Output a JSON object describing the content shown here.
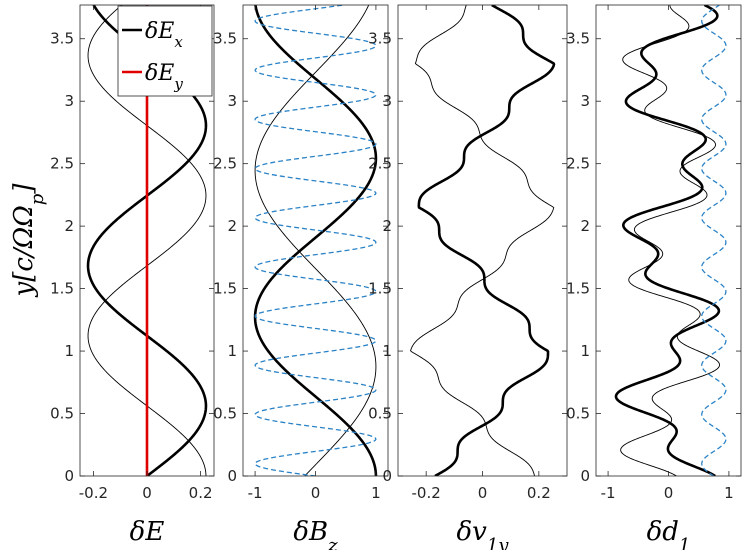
{
  "figure": {
    "ylabel": "y[c/Ωp]"
  },
  "chart_data": [
    {
      "type": "line",
      "panel": "δE",
      "xlabel": "δE",
      "xlim": [
        -0.25,
        0.25
      ],
      "ylim": [
        0,
        3.77
      ],
      "xticks": [
        "-0.2",
        "0",
        "0.2"
      ],
      "xtick_values": [
        -0.2,
        0,
        0.2
      ],
      "yticks": [
        "0",
        "0.5",
        "1",
        "1.5",
        "2",
        "2.5",
        "3",
        "3.5"
      ],
      "ytick_values": [
        0,
        0.5,
        1,
        1.5,
        2,
        2.5,
        3,
        3.5
      ],
      "legend": {
        "placement": "top",
        "entries": [
          {
            "label": "δEx",
            "color": "#000000"
          },
          {
            "label": "δEy",
            "color": "#e00000"
          }
        ]
      },
      "series": [
        {
          "name": "δEx",
          "color": "#000000",
          "style": "thick",
          "model": {
            "kind": "sin",
            "amp": 0.22,
            "k": 2.8,
            "phase": 0.0
          }
        },
        {
          "name": "",
          "color": "#000000",
          "style": "thin",
          "model": {
            "kind": "sin",
            "amp": 0.22,
            "k": 2.8,
            "phase": 1.5708
          }
        },
        {
          "name": "δEy",
          "color": "#e00000",
          "style": "thick",
          "model": {
            "kind": "const",
            "value": 0
          }
        }
      ]
    },
    {
      "type": "line",
      "panel": "δBz",
      "xlabel": "δBz",
      "xlim": [
        -1.2,
        1.2
      ],
      "ylim": [
        0,
        3.77
      ],
      "xticks": [
        "-1",
        "0",
        "1"
      ],
      "xtick_values": [
        -1,
        0,
        1
      ],
      "yticks": [
        "0",
        "0.5",
        "1",
        "1.5",
        "2",
        "2.5",
        "3",
        "3.5"
      ],
      "ytick_values": [
        0,
        0.5,
        1,
        1.5,
        2,
        2.5,
        3,
        3.5
      ],
      "series": [
        {
          "name": "",
          "color": "#000000",
          "style": "thick",
          "model": {
            "kind": "cos",
            "amp": 1.0,
            "k": 2.47,
            "phase": 0.0
          }
        },
        {
          "name": "",
          "color": "#000000",
          "style": "thin",
          "model": {
            "kind": "cos",
            "amp": 1.0,
            "k": 2.0,
            "phase": -1.75
          }
        },
        {
          "name": "",
          "color": "#2b83c7",
          "style": "dashed",
          "model": {
            "kind": "cos",
            "amp": 1.0,
            "k": 15.96,
            "phase": 1.57
          }
        }
      ]
    },
    {
      "type": "line",
      "panel": "δv1y",
      "xlabel": "δv1y",
      "xlim": [
        -0.3,
        0.3
      ],
      "ylim": [
        0,
        3.77
      ],
      "xticks": [
        "-0.2",
        "0",
        "0.2"
      ],
      "xtick_values": [
        -0.2,
        0,
        0.2
      ],
      "yticks": [
        "0",
        "0.5",
        "1",
        "1.5",
        "2",
        "2.5",
        "3",
        "3.5"
      ],
      "ytick_values": [
        0,
        0.5,
        1,
        1.5,
        2,
        2.5,
        3,
        3.5
      ],
      "series": [
        {
          "name": "",
          "color": "#000000",
          "style": "thick",
          "model": {
            "kind": "triangle",
            "min": -0.23,
            "max": 0.24,
            "period": 2.3,
            "phase": 0.15,
            "ripple": 0.025,
            "rippleK": 16
          }
        },
        {
          "name": "",
          "color": "#000000",
          "style": "thin",
          "model": {
            "kind": "triangle",
            "min": -0.25,
            "max": 0.25,
            "period": 2.3,
            "phase": 1.3,
            "ripple": 0.02,
            "rippleK": 16
          }
        }
      ]
    },
    {
      "type": "line",
      "panel": "δd1",
      "xlabel": "δd1",
      "xlim": [
        -1.2,
        1.2
      ],
      "ylim": [
        0,
        3.77
      ],
      "xticks": [
        "-1",
        "0",
        "1"
      ],
      "xtick_values": [
        -1,
        0,
        1
      ],
      "yticks": [
        "0",
        "0.5",
        "1",
        "1.5",
        "2",
        "2.5",
        "3",
        "3.5"
      ],
      "ytick_values": [
        0,
        0.5,
        1,
        1.5,
        2,
        2.5,
        3,
        3.5
      ],
      "series": [
        {
          "name": "",
          "color": "#000000",
          "style": "thick",
          "model": {
            "kind": "mix",
            "terms": [
              [
                0.55,
                5.0,
                0.0
              ],
              [
                0.32,
                13.5,
                0.8
              ]
            ],
            "offset": 0.0
          }
        },
        {
          "name": "",
          "color": "#000000",
          "style": "thin",
          "model": {
            "kind": "mix",
            "terms": [
              [
                0.5,
                4.2,
                2.1
              ],
              [
                0.35,
                14.0,
                0.3
              ]
            ],
            "offset": 0.05
          }
        },
        {
          "name": "",
          "color": "#2b83c7",
          "style": "dashed",
          "model": {
            "kind": "mix",
            "terms": [
              [
                0.2,
                15.96,
                1.57
              ]
            ],
            "offset": 0.75
          }
        }
      ]
    }
  ]
}
